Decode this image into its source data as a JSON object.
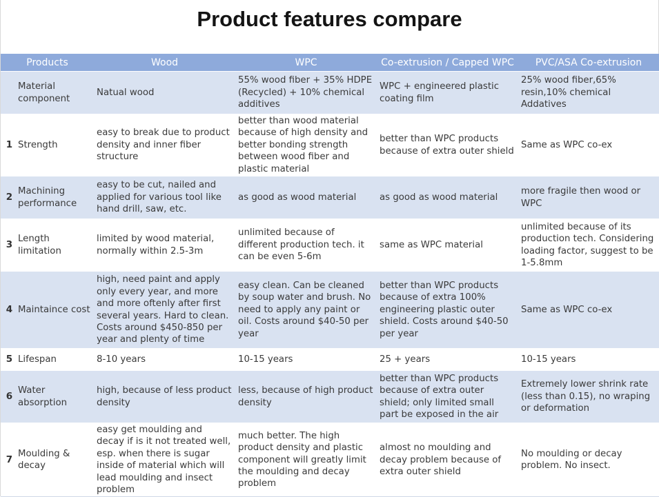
{
  "title": "Product features compare",
  "columns": [
    "Products",
    "Wood",
    "WPC",
    "Co-extrusion / Capped WPC",
    "PVC/ASA Co-extrusion"
  ],
  "rows": [
    {
      "num": "",
      "feature": "Material component",
      "wood": "Natual wood",
      "wpc": "55% wood fiber + 35% HDPE (Recycled) + 10% chemical additives",
      "capped": "WPC + engineered plastic coating film",
      "pvc": "25% wood fiber,65% resin,10% chemical Addatives"
    },
    {
      "num": "1",
      "feature": "Strength",
      "wood": "easy to break due to product density and inner fiber structure",
      "wpc": "better than wood material because of high density and better bonding strength between wood fiber and plastic material",
      "capped": "better than WPC products because of extra outer shield",
      "pvc": "Same as WPC co-ex"
    },
    {
      "num": "2",
      "feature": "Machining performance",
      "wood": "easy to be cut, nailed and applied for various tool like hand drill, saw, etc.",
      "wpc": "as good as wood material",
      "capped": "as good as wood material",
      "pvc": "more fragile then wood or WPC"
    },
    {
      "num": "3",
      "feature": "Length limitation",
      "wood": "limited by wood material, normally within 2.5-3m",
      "wpc": "unlimited because of different production tech. it can be even 5-6m",
      "capped": "same as WPC material",
      "pvc": "unlimited because of its production tech. Considering loading factor, suggest to be 1-5.8mm"
    },
    {
      "num": "4",
      "feature": "Maintaince cost",
      "wood": "high, need paint and apply only every year, and more and more oftenly after first several years. Hard to clean. Costs around $450-850 per year and plenty of time",
      "wpc": "easy clean. Can be cleaned by soup water and brush. No need to apply any paint or oil. Costs around $40-50 per year",
      "capped": "better than WPC products because of extra 100% engineering plastic outer shield. Costs around $40-50 per year",
      "pvc": "Same as WPC co-ex"
    },
    {
      "num": "5",
      "feature": "Lifespan",
      "wood": "8-10 years",
      "wpc": "10-15 years",
      "capped": "25 + years",
      "pvc": "10-15 years"
    },
    {
      "num": "6",
      "feature": "Water absorption",
      "wood": "high, because of less product density",
      "wpc": "less, because of high product density",
      "capped": "better than WPC products because of extra outer shield; only limited small part be exposed in the air",
      "pvc": "Extremely lower shrink rate (less than 0.15), no wraping or deformation"
    },
    {
      "num": "7",
      "feature": "Moulding & decay",
      "wood": "easy get moulding and decay if is it not treated well, esp. when there is sugar inside of material which will lead moulding and insect problem",
      "wpc": "much better. The high product density and plastic component will greatly limit the moulding and decay problem",
      "capped": "almost no moulding and decay problem because of extra outer shield",
      "pvc": "No moulding or decay problem. No insect."
    }
  ]
}
